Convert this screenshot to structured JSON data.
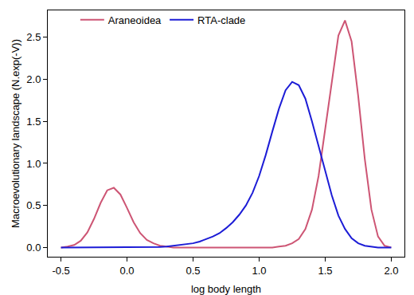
{
  "chart_data": {
    "type": "line",
    "x_label": "log body length",
    "y_label": "Macroevolutionary landscape (N.exp(-V))",
    "x": [
      -0.5,
      -0.45,
      -0.4,
      -0.35,
      -0.3,
      -0.25,
      -0.2,
      -0.15,
      -0.1,
      -0.05,
      0.0,
      0.05,
      0.1,
      0.15,
      0.2,
      0.25,
      0.3,
      0.35,
      0.4,
      0.45,
      0.5,
      0.55,
      0.6,
      0.65,
      0.7,
      0.75,
      0.8,
      0.85,
      0.9,
      0.95,
      1.0,
      1.05,
      1.1,
      1.15,
      1.2,
      1.25,
      1.3,
      1.35,
      1.4,
      1.45,
      1.5,
      1.55,
      1.6,
      1.65,
      1.7,
      1.75,
      1.8,
      1.85,
      1.9,
      1.95,
      2.0
    ],
    "series": [
      {
        "name": "Araneoidea",
        "color": "#cd5574",
        "values": [
          0.0,
          0.01,
          0.03,
          0.08,
          0.18,
          0.34,
          0.53,
          0.68,
          0.71,
          0.63,
          0.47,
          0.3,
          0.17,
          0.09,
          0.05,
          0.02,
          0.01,
          0.0,
          0.0,
          0.0,
          0.0,
          0.0,
          0.0,
          0.0,
          0.0,
          0.0,
          0.0,
          0.0,
          0.0,
          0.0,
          0.0,
          0.0,
          0.0,
          0.01,
          0.02,
          0.05,
          0.1,
          0.22,
          0.45,
          0.85,
          1.4,
          2.0,
          2.52,
          2.7,
          2.45,
          1.8,
          1.05,
          0.45,
          0.13,
          0.02,
          0.0
        ]
      },
      {
        "name": "RTA-clade",
        "color": "#1c1cd6",
        "values": [
          0.0,
          0.0,
          0.0,
          0.0,
          0.0,
          0.0,
          0.0,
          0.0,
          0.0,
          0.0,
          0.0,
          0.0,
          0.0,
          0.0,
          0.005,
          0.007,
          0.01,
          0.02,
          0.03,
          0.04,
          0.05,
          0.07,
          0.1,
          0.13,
          0.17,
          0.23,
          0.3,
          0.39,
          0.5,
          0.65,
          0.85,
          1.1,
          1.38,
          1.65,
          1.87,
          1.97,
          1.93,
          1.77,
          1.5,
          1.2,
          0.9,
          0.62,
          0.38,
          0.22,
          0.11,
          0.05,
          0.02,
          0.01,
          0.0,
          0.0,
          0.0
        ]
      }
    ],
    "xlim": [
      -0.6,
      2.1
    ],
    "ylim": [
      -0.11,
      2.82
    ],
    "xticks": [
      {
        "value": -0.5,
        "label": "-0.5"
      },
      {
        "value": 0,
        "label": "0.0"
      },
      0.5,
      {
        "value": 1,
        "label": "1.0"
      },
      1.5,
      {
        "value": 2,
        "label": "2.0"
      }
    ],
    "yticks": [
      {
        "value": 0,
        "label": "0.0"
      },
      0.5,
      {
        "value": 1,
        "label": "1.0"
      },
      1.5,
      {
        "value": 2,
        "label": "2.0"
      },
      2.5
    ],
    "grid": false,
    "legend": "top left"
  }
}
